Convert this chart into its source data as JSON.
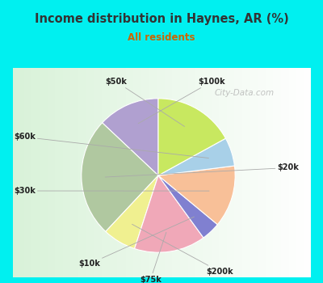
{
  "title": "Income distribution in Haynes, AR (%)",
  "subtitle": "All residents",
  "labels": [
    "$100k",
    "$20k",
    "$200k",
    "$75k",
    "$10k",
    "$30k",
    "$60k",
    "$50k"
  ],
  "sizes": [
    13,
    25,
    7,
    15,
    4,
    13,
    6,
    17
  ],
  "colors": [
    "#b0a0d0",
    "#b0c8a0",
    "#f0f090",
    "#f0a8b8",
    "#8080d0",
    "#f8c098",
    "#a8d0e8",
    "#c8e860"
  ],
  "bg_cyan": "#00f0f0",
  "title_color": "#333333",
  "subtitle_color": "#cc6600",
  "label_color": "#222222",
  "startangle": 90,
  "watermark": "City-Data.com",
  "watermark_color": "#aaaaaa"
}
